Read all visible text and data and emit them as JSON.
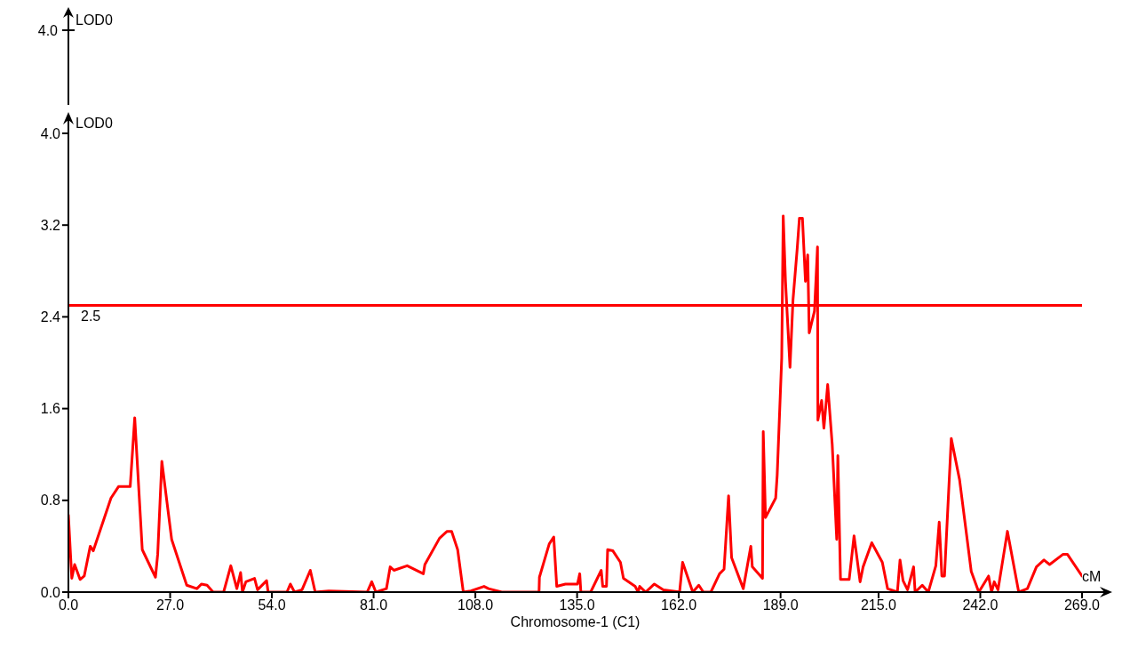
{
  "chart_data": {
    "type": "line",
    "xlabel": "Chromosome-1 (C1)",
    "ylabel": "LOD0",
    "annotations": [
      "cM",
      "LOD0",
      "4.0"
    ],
    "xlim": [
      0,
      269
    ],
    "ylim": [
      0,
      4.0
    ],
    "xticks": [
      {
        "value": 0,
        "label": "0.0"
      },
      {
        "value": 27,
        "label": "27.0"
      },
      {
        "value": 54,
        "label": "54.0"
      },
      {
        "value": 81,
        "label": "81.0"
      },
      {
        "value": 108,
        "label": "108.0"
      },
      {
        "value": 135,
        "label": "135.0"
      },
      {
        "value": 162,
        "label": "162.0"
      },
      {
        "value": 189,
        "label": "189.0"
      },
      {
        "value": 215,
        "label": "215.0"
      },
      {
        "value": 242,
        "label": "242.0"
      },
      {
        "value": 269,
        "label": "269.0"
      }
    ],
    "yticks": [
      {
        "value": 0,
        "label": "0.0"
      },
      {
        "value": 0.8,
        "label": "0.8"
      },
      {
        "value": 1.6,
        "label": "1.6"
      },
      {
        "value": 2.4,
        "label": "2.4"
      },
      {
        "value": 3.2,
        "label": "3.2"
      },
      {
        "value": 4.0,
        "label": "4.0"
      }
    ],
    "grid": false,
    "legend": false,
    "marker": "none",
    "line_style": "solid",
    "ref_lines": [
      {
        "axis": "y",
        "value": 2.5,
        "label": "2.5",
        "color": "#ff0000"
      }
    ],
    "series": [
      {
        "color": "#ff0000",
        "x": [
          0,
          0.9,
          1.65,
          3.1,
          4.2,
          5.8,
          6.6,
          11.3,
          13.3,
          16.4,
          17.6,
          19.6,
          23.1,
          23.7,
          24.8,
          27.4,
          31.4,
          34.1,
          35.3,
          36.8,
          38.4,
          41.2,
          43.1,
          44.7,
          45.7,
          46.2,
          47.1,
          49.4,
          50.2,
          52.6,
          53,
          58,
          58.9,
          60,
          62,
          64.2,
          65.5,
          69.1,
          79.3,
          80.5,
          81.6,
          84.4,
          85.4,
          86.4,
          89.9,
          94.2,
          94.6,
          98.5,
          100.5,
          101.7,
          103.3,
          104.8,
          106.8,
          110.3,
          111.5,
          115,
          124.9,
          125,
          127.6,
          128.8,
          129.6,
          131.9,
          135.1,
          135.7,
          136,
          138.6,
          141.4,
          141.8,
          142.8,
          143.1,
          144.5,
          146.5,
          147.3,
          150.4,
          151.2,
          151.6,
          153.2,
          155.5,
          157.9,
          162.2,
          163,
          165.7,
          167.3,
          168.5,
          170.5,
          172.8,
          174,
          175.2,
          176,
          179.1,
          181.1,
          181.5,
          184.2,
          184.4,
          185,
          187.7,
          188.1,
          189.3,
          189.7,
          190.3,
          191.5,
          192.3,
          193.4,
          194,
          194.8,
          195.6,
          196.2,
          196.6,
          198,
          198.8,
          198.9,
          199.9,
          200.5,
          201.5,
          202.7,
          203.9,
          204.2,
          204.9,
          207.2,
          208.5,
          210.1,
          210.9,
          213.2,
          216,
          217.4,
          220,
          220.7,
          221.5,
          222.7,
          224.3,
          224.7,
          226.6,
          228.2,
          230.2,
          231.1,
          231.8,
          232.5,
          234.3,
          236.5,
          239.6,
          241.6,
          244.2,
          245,
          245.7,
          246.7,
          249.2,
          252.2,
          254.5,
          256.9,
          258.9,
          260.4,
          264,
          265.1,
          269
        ],
        "values": [
          0.67,
          0.12,
          0.24,
          0.11,
          0.14,
          0.4,
          0.36,
          0.82,
          0.92,
          0.92,
          1.52,
          0.37,
          0.13,
          0.33,
          1.14,
          0.46,
          0.06,
          0.03,
          0.07,
          0.06,
          0,
          0,
          0.23,
          0.03,
          0.17,
          0,
          0.09,
          0.12,
          0.02,
          0.1,
          0,
          0,
          0.07,
          0,
          0.02,
          0.19,
          0,
          0.01,
          0,
          0.09,
          0,
          0.03,
          0.22,
          0.19,
          0.23,
          0.16,
          0.24,
          0.47,
          0.53,
          0.53,
          0.37,
          0,
          0.01,
          0.05,
          0.03,
          0,
          0,
          0.13,
          0.42,
          0.48,
          0.05,
          0.07,
          0.07,
          0.16,
          0,
          0,
          0.19,
          0.05,
          0.05,
          0.37,
          0.36,
          0.26,
          0.12,
          0.05,
          0,
          0.05,
          0,
          0.07,
          0.02,
          0,
          0.26,
          0,
          0.06,
          0,
          0,
          0.16,
          0.2,
          0.84,
          0.3,
          0.03,
          0.4,
          0.22,
          0.12,
          1.4,
          0.65,
          0.82,
          1.02,
          2.04,
          3.28,
          2.71,
          1.96,
          2.55,
          2.99,
          3.26,
          3.26,
          2.71,
          2.94,
          2.26,
          2.45,
          3.01,
          1.5,
          1.67,
          1.43,
          1.81,
          1.29,
          0.46,
          1.19,
          0.11,
          0.11,
          0.49,
          0.09,
          0.22,
          0.43,
          0.26,
          0.03,
          0,
          0.28,
          0.1,
          0.02,
          0.22,
          0,
          0.06,
          0,
          0.23,
          0.61,
          0.14,
          0.14,
          1.34,
          0.98,
          0.18,
          0,
          0.14,
          0,
          0.09,
          0.02,
          0.53,
          0,
          0.03,
          0.22,
          0.28,
          0.24,
          0.33,
          0.33,
          0.14
        ]
      }
    ]
  }
}
